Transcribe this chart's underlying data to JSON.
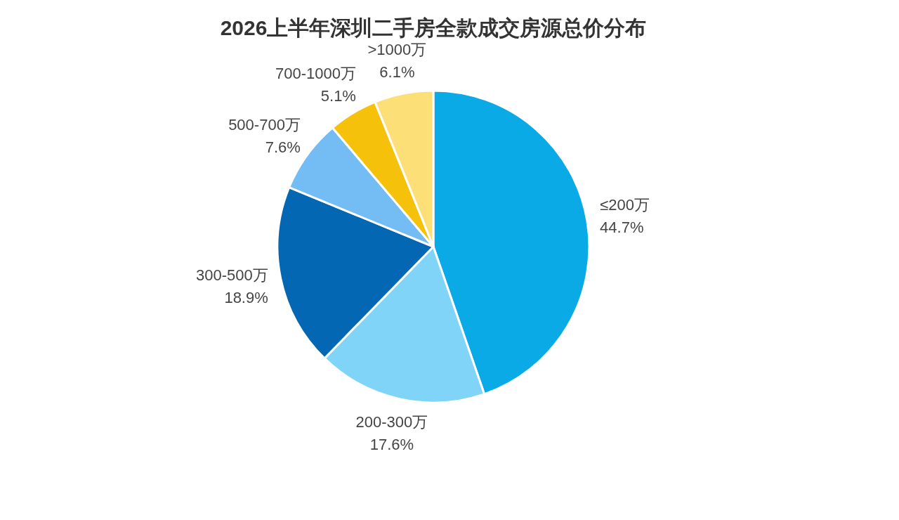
{
  "chart_data": {
    "type": "pie",
    "title": "2026上半年深圳二手房全款成交房源总价分布",
    "categories": [
      "≤200万",
      "200-300万",
      "300-500万",
      "500-700万",
      "700-1000万",
      ">1000万"
    ],
    "values": [
      44.7,
      17.6,
      18.9,
      7.6,
      5.1,
      6.1
    ],
    "colors": [
      "#0aaae6",
      "#80d4f8",
      "#0467b3",
      "#74bcf4",
      "#f6c10a",
      "#fddf78"
    ],
    "value_labels": [
      "44.7%",
      "17.6%",
      "18.9%",
      "7.6%",
      "5.1%",
      "6.1%"
    ],
    "legend": false
  }
}
